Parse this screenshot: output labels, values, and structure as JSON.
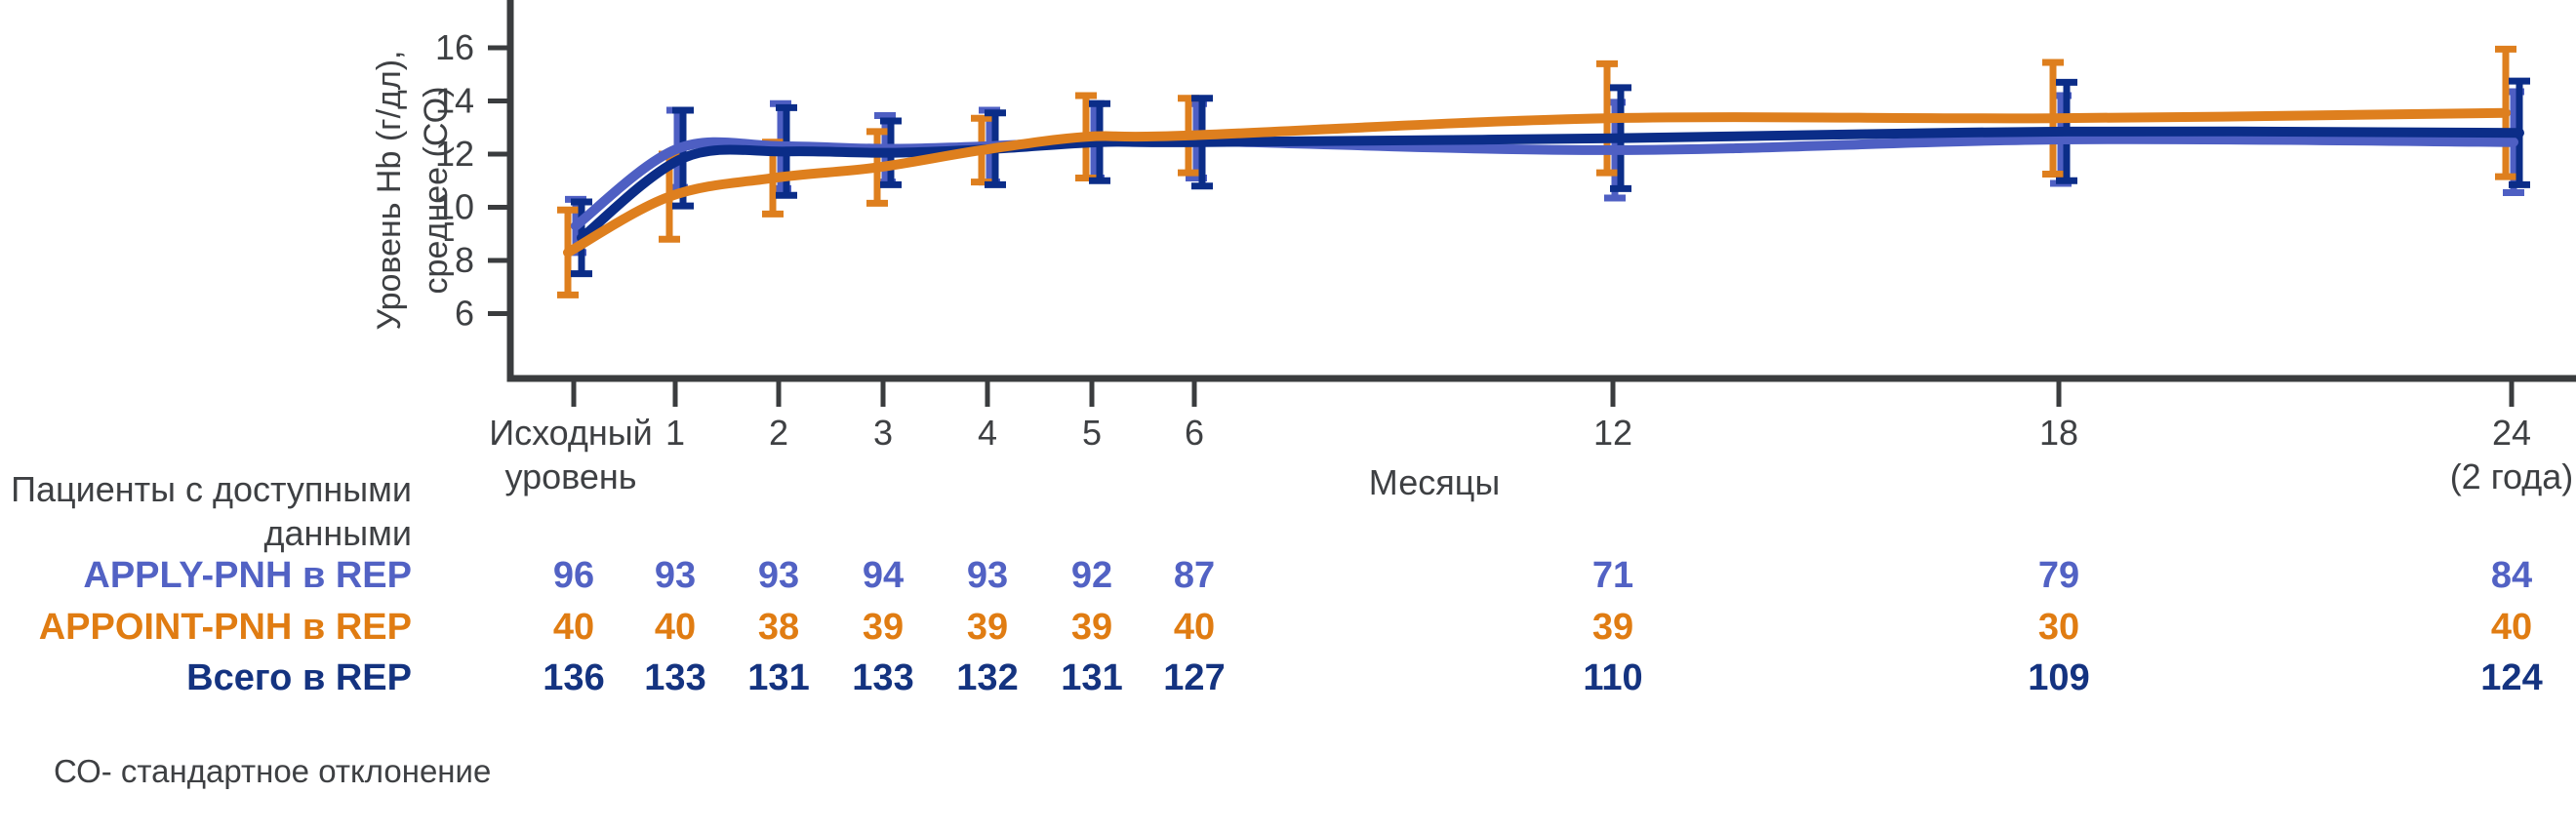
{
  "colors": {
    "axis": "#3A3C3E",
    "text": "#3E4043",
    "apply_line": "#4E5FC3",
    "appoint_line": "#DE7F1E",
    "total_line": "#0B2D88"
  },
  "chart_data": {
    "type": "line",
    "title": "",
    "ylabel_line1": "Уровень Hb (г/дл),",
    "ylabel_line2": "среднее (СО)",
    "xlabel": "Месяцы",
    "y_ticks": [
      16,
      14,
      12,
      10,
      8,
      6
    ],
    "ylim": [
      3.5,
      17.8
    ],
    "grid": "off",
    "legend": "none",
    "x_ticks": [
      {
        "month": 0,
        "label": "Исходный",
        "label2": "уровень"
      },
      {
        "month": 1,
        "label": "1"
      },
      {
        "month": 2,
        "label": "2"
      },
      {
        "month": 3,
        "label": "3"
      },
      {
        "month": 4,
        "label": "4"
      },
      {
        "month": 5,
        "label": "5"
      },
      {
        "month": 6,
        "label": "6"
      },
      {
        "month": 12,
        "label": "12"
      },
      {
        "month": 18,
        "label": "18"
      },
      {
        "month": 24,
        "label": "24",
        "label2": "(2 года)"
      }
    ],
    "series": [
      {
        "name": "APPLY-PNH в REP",
        "color": "#4E5FC3",
        "values": [
          9.3,
          12.2,
          12.3,
          12.2,
          12.3,
          12.5,
          12.5,
          12.15,
          12.55,
          12.45
        ],
        "sd": [
          1.0,
          1.45,
          1.6,
          1.25,
          1.35,
          1.4,
          1.4,
          1.8,
          1.65,
          1.9
        ]
      },
      {
        "name": "APPOINT-PNH в REP",
        "color": "#DE7F1E",
        "values": [
          8.3,
          10.4,
          11.1,
          11.5,
          12.15,
          12.65,
          12.7,
          13.35,
          13.35,
          13.55
        ],
        "sd": [
          1.6,
          1.6,
          1.35,
          1.35,
          1.2,
          1.55,
          1.4,
          2.05,
          2.1,
          2.4
        ]
      },
      {
        "name": "Всего в REP",
        "color": "#0B2D88",
        "values": [
          8.85,
          11.85,
          12.1,
          12.05,
          12.2,
          12.45,
          12.45,
          12.6,
          12.85,
          12.8
        ],
        "sd": [
          1.35,
          1.8,
          1.65,
          1.2,
          1.35,
          1.45,
          1.65,
          1.9,
          1.85,
          1.95
        ]
      }
    ]
  },
  "table": {
    "header_line1": "Пациенты с доступными",
    "header_line2": "данными",
    "rows": [
      {
        "label": "APPLY-PNH в REP",
        "color": "#5262C4",
        "values": [
          96,
          93,
          93,
          94,
          93,
          92,
          87,
          71,
          79,
          84
        ]
      },
      {
        "label": "APPOINT-PNH в REP",
        "color": "#E07C12",
        "values": [
          40,
          40,
          38,
          39,
          39,
          39,
          40,
          39,
          30,
          40
        ]
      },
      {
        "label": "Всего в REP",
        "color": "#143380",
        "values": [
          136,
          133,
          131,
          133,
          132,
          131,
          127,
          110,
          109,
          124
        ]
      }
    ]
  },
  "footnote": "СО- стандартное отклонение"
}
